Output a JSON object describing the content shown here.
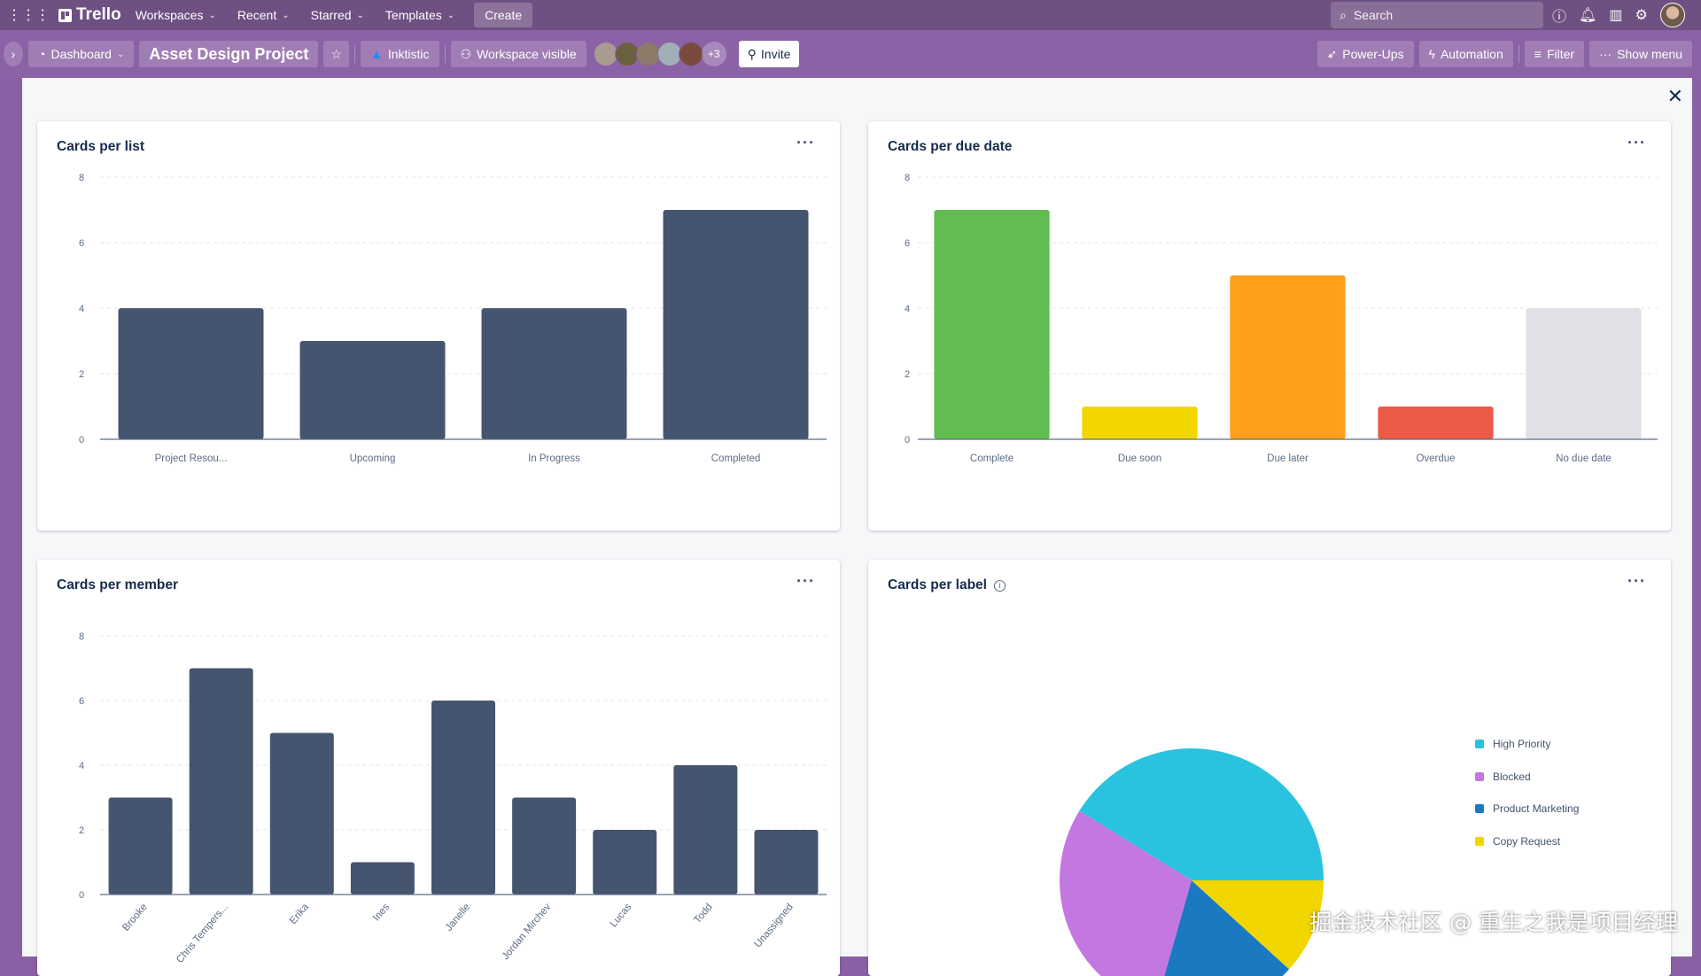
{
  "topbar": {
    "app": "Trello",
    "nav": [
      "Workspaces",
      "Recent",
      "Starred",
      "Templates"
    ],
    "create": "Create",
    "search_placeholder": "Search"
  },
  "board": {
    "view": "Dashboard",
    "title": "Asset Design Project",
    "workspace": "Inktistic",
    "visibility": "Workspace visible",
    "extra_members": "+3",
    "invite": "Invite",
    "power_ups": "Power-Ups",
    "automation": "Automation",
    "filter": "Filter",
    "show_menu": "Show menu"
  },
  "colors": {
    "bar": "#455570",
    "topbar": "#6e5082",
    "board": "#8b62a5"
  },
  "chart_data": [
    {
      "type": "bar",
      "title": "Cards per list",
      "categories": [
        "Project Resou...",
        "Upcoming",
        "In Progress",
        "Completed"
      ],
      "values": [
        4,
        3,
        4,
        7
      ],
      "yticks": [
        "0",
        "2",
        "4",
        "6",
        "8"
      ],
      "ylim": [
        0,
        8
      ],
      "colors": [
        "#455570",
        "#455570",
        "#455570",
        "#455570"
      ]
    },
    {
      "type": "bar",
      "title": "Cards per due date",
      "categories": [
        "Complete",
        "Due soon",
        "Due later",
        "Overdue",
        "No due date"
      ],
      "values": [
        7,
        1,
        5,
        1,
        4
      ],
      "yticks": [
        "0",
        "2",
        "4",
        "6",
        "8"
      ],
      "ylim": [
        0,
        8
      ],
      "colors": [
        "#61bd4f",
        "#f2d600",
        "#ff9f1a",
        "#eb5a46",
        "#dfe1e6"
      ]
    },
    {
      "type": "bar",
      "title": "Cards per member",
      "categories": [
        "Brooke",
        "Chris Tempers...",
        "Erika",
        "Ines",
        "Janelle",
        "Jordan Mirchev",
        "Lucas",
        "Todd",
        "Unassigned"
      ],
      "values": [
        3,
        7,
        5,
        1,
        6,
        3,
        2,
        4,
        2
      ],
      "yticks": [
        "0",
        "2",
        "4",
        "6",
        "8"
      ],
      "ylim": [
        0,
        8
      ],
      "colors": [
        "#455570",
        "#455570",
        "#455570",
        "#455570",
        "#455570",
        "#455570",
        "#455570",
        "#455570",
        "#455570"
      ]
    },
    {
      "type": "pie",
      "title": "Cards per label",
      "labels": [
        "High Priority",
        "Blocked",
        "Product Marketing",
        "Copy Request"
      ],
      "values": [
        7,
        5,
        3,
        2
      ],
      "colors": [
        "#29c3e0",
        "#c377e0",
        "#1a79c0",
        "#f2d600"
      ]
    }
  ],
  "watermark": "掘金技术社区 @ 重生之我是项目经理"
}
